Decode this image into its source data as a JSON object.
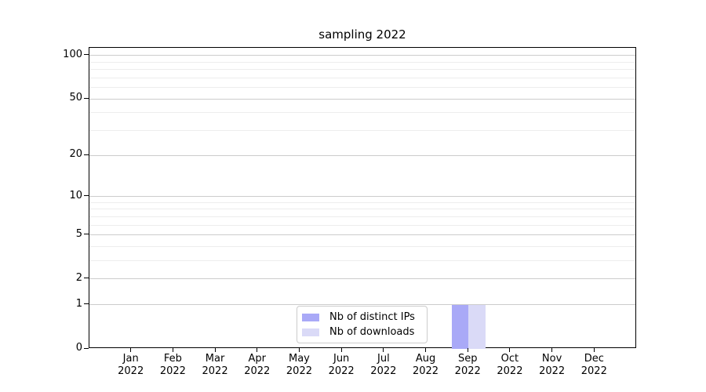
{
  "chart_data": {
    "type": "bar",
    "title": "sampling 2022",
    "categories": [
      "Jan",
      "Feb",
      "Mar",
      "Apr",
      "May",
      "Jun",
      "Jul",
      "Aug",
      "Sep",
      "Oct",
      "Nov",
      "Dec"
    ],
    "x_year_label": "2022",
    "series": [
      {
        "name": "Nb of distinct IPs",
        "color": "#a9a9f7",
        "values": [
          0,
          0,
          0,
          0,
          0,
          0,
          0,
          0,
          1,
          0,
          0,
          0
        ]
      },
      {
        "name": "Nb of downloads",
        "color": "#dadaf7",
        "values": [
          0,
          0,
          0,
          0,
          0,
          0,
          0,
          0,
          1,
          0,
          0,
          0
        ]
      }
    ],
    "xlabel": "",
    "ylabel": "",
    "y_scale": "log(1+x)",
    "y_ticks": [
      0,
      1,
      2,
      5,
      10,
      20,
      50,
      100
    ],
    "y_minor_ticks": [
      3,
      4,
      6,
      7,
      8,
      9,
      30,
      40,
      60,
      70,
      80,
      90
    ],
    "ylim": [
      0,
      113
    ],
    "grid": "horizontal major+minor",
    "legend_position": "lower center inside"
  }
}
